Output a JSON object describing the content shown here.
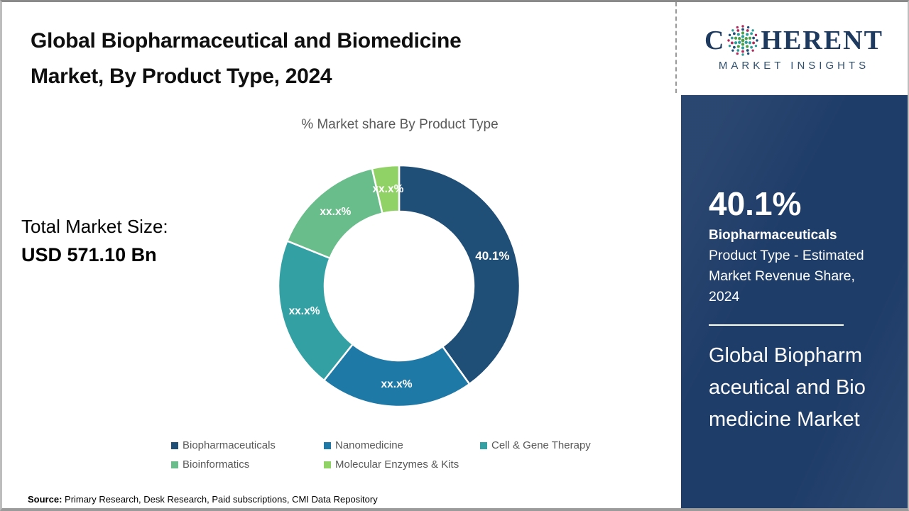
{
  "header": {
    "title": "Global Biopharmaceutical and Biomedicine Market, By Product Type, 2024"
  },
  "market_size": {
    "label": "Total Market Size:",
    "value": "USD 571.10 Bn"
  },
  "chart_data": {
    "type": "pie",
    "donut": true,
    "title": "% Market share By Product Type",
    "categories": [
      "Biopharmaceuticals",
      "Nanomedicine",
      "Cell & Gene Therapy",
      "Bioinformatics",
      "Molecular Enzymes & Kits"
    ],
    "values": [
      40.1,
      20.6,
      20.4,
      15.3,
      3.6
    ],
    "labels": [
      "40.1%",
      "xx.x%",
      "xx.x%",
      "xx.x%",
      "xx.x%"
    ],
    "colors": [
      "#1f4e77",
      "#1f79a7",
      "#33a1a4",
      "#69bd8a",
      "#90d266"
    ],
    "start_angle_deg": 0,
    "legend_position": "bottom",
    "label_color": "#ffffff"
  },
  "sidebar": {
    "logo": {
      "prefix": "C",
      "suffix": "HERENT",
      "tagline": "MARKET INSIGHTS",
      "navy": "#1e3a5f",
      "globe_colors": [
        "#4f9e49",
        "#2e9d99",
        "#1f4e79",
        "#b02a5b"
      ]
    },
    "panel_color": "#1f3d69",
    "stat": {
      "value": "40.1%",
      "category": "Biopharmaceuticals",
      "description": "Product Type - Estimated Market Revenue Share, 2024"
    },
    "market_name": "Global Biopharmaceutical and Biomedicine Market"
  },
  "source": {
    "label": "Source:",
    "text": " Primary Research, Desk Research, Paid subscriptions, CMI Data Repository"
  }
}
